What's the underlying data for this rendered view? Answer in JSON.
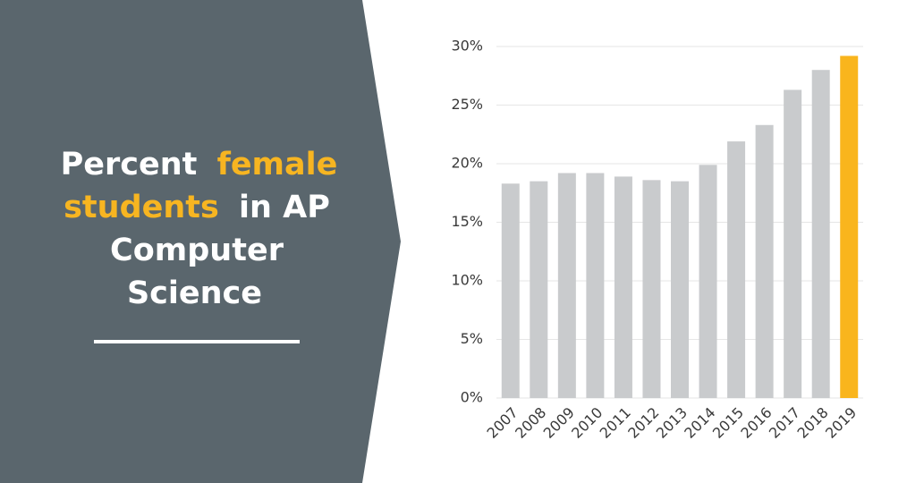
{
  "chart_data": {
    "type": "bar",
    "title_segments": [
      {
        "text": "Percent",
        "highlight": false
      },
      {
        "text": "female students",
        "highlight": true
      },
      {
        "text": "in AP Computer Science",
        "highlight": false
      }
    ],
    "highlight_color": "#f7b521",
    "panel_color": "#5a666d",
    "categories": [
      "2007",
      "2008",
      "2009",
      "2010",
      "2011",
      "2012",
      "2013",
      "2014",
      "2015",
      "2016",
      "2017",
      "2018",
      "2019"
    ],
    "values": [
      18.3,
      18.5,
      19.2,
      19.2,
      18.9,
      18.6,
      18.5,
      19.9,
      21.9,
      23.3,
      26.3,
      28.0,
      29.2
    ],
    "colors": [
      "#c9cbcd",
      "#c9cbcd",
      "#c9cbcd",
      "#c9cbcd",
      "#c9cbcd",
      "#c9cbcd",
      "#c9cbcd",
      "#c9cbcd",
      "#c9cbcd",
      "#c9cbcd",
      "#c9cbcd",
      "#c9cbcd",
      "#f9b51d"
    ],
    "ylim": [
      0,
      30
    ],
    "yticks": [
      {
        "value": 0,
        "label": "0%"
      },
      {
        "value": 5,
        "label": "5%"
      },
      {
        "value": 10,
        "label": "10%"
      },
      {
        "value": 15,
        "label": "15%"
      },
      {
        "value": 20,
        "label": "20%"
      },
      {
        "value": 25,
        "label": "25%"
      },
      {
        "value": 30,
        "label": "30%"
      }
    ],
    "grid": true
  }
}
